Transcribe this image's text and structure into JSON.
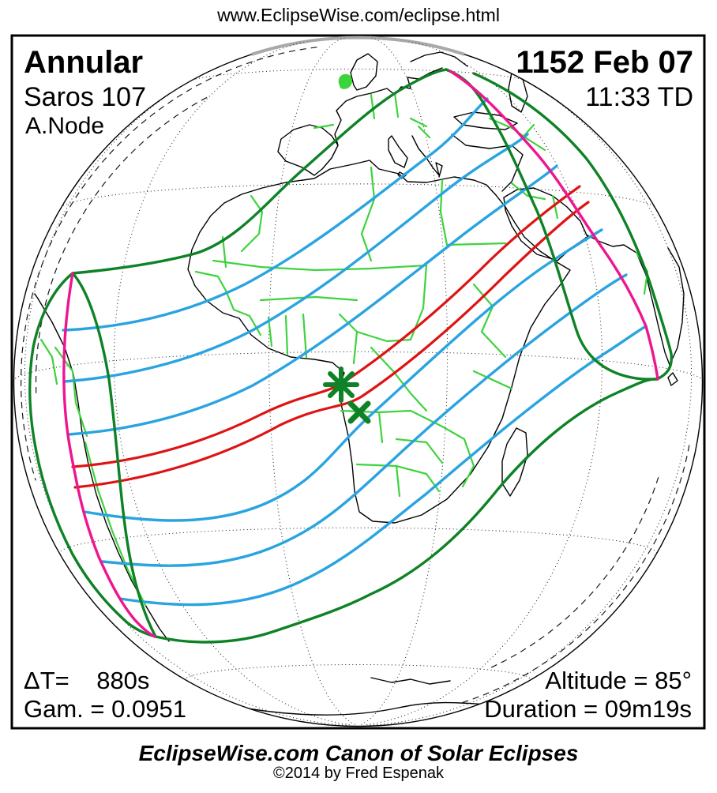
{
  "header": {
    "url": "www.EclipseWise.com/eclipse.html"
  },
  "map": {
    "eclipse_type": "Annular",
    "saros": "Saros 107",
    "node": "A.Node",
    "date": "1152 Feb 07",
    "time": "11:33 TD",
    "delta_t": "ΔT=    880s",
    "gamma": "Gam. = 0.0951",
    "altitude": "Altitude = 85°",
    "duration": "Duration = 09m19s",
    "markers": {
      "greatest_eclipse": "star-marker",
      "greatest_duration": "x-marker"
    }
  },
  "footer": {
    "title": "EclipseWise.com Canon of Solar Eclipses",
    "copyright": "©2014 by Fred Espenak"
  },
  "colors": {
    "blue": "#2aa4e0",
    "red": "#de1414",
    "magenta": "#ee1690",
    "darkgreen": "#0e8226",
    "lightgreen": "#3dd33d"
  }
}
